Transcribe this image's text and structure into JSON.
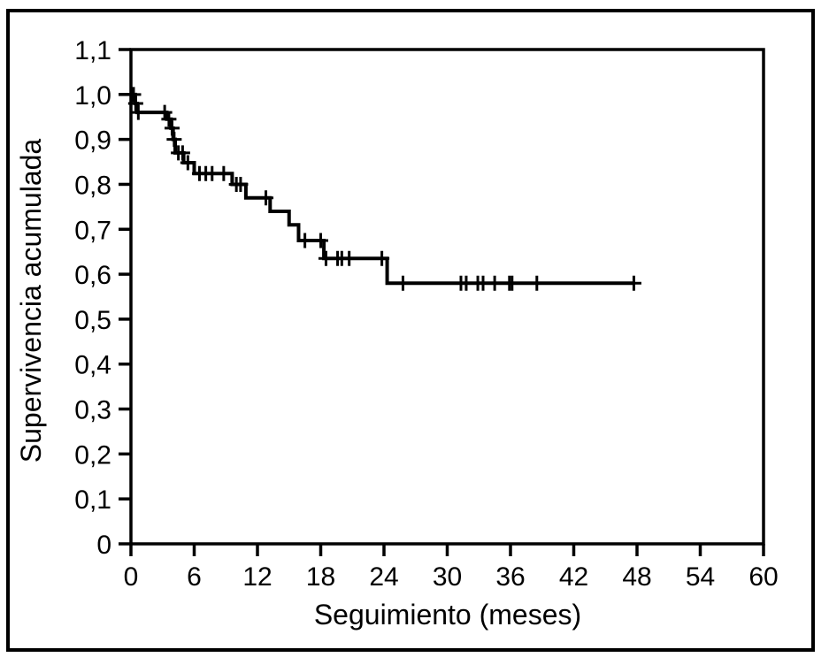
{
  "figure": {
    "background_color": "#ffffff",
    "border_color": "#000000",
    "line_color": "#000000"
  },
  "chart_data": {
    "type": "line",
    "subtype": "kaplan-meier-step-function",
    "title": "",
    "xlabel": "Seguimiento (meses)",
    "ylabel": "Supervivencia acumulada",
    "xlim": [
      0,
      60
    ],
    "ylim": [
      0,
      1.1
    ],
    "grid": false,
    "legend": false,
    "decimal_separator": ",",
    "xticks": [
      0,
      6,
      12,
      18,
      24,
      30,
      36,
      42,
      48,
      54,
      60
    ],
    "xtick_labels": [
      "0",
      "6",
      "12",
      "18",
      "24",
      "30",
      "36",
      "42",
      "48",
      "54",
      "60"
    ],
    "yticks": [
      0,
      0.1,
      0.2,
      0.3,
      0.4,
      0.5,
      0.6,
      0.7,
      0.8,
      0.9,
      1.0,
      1.1
    ],
    "ytick_labels": [
      "0",
      "0,1",
      "0,2",
      "0,3",
      "0,4",
      "0,5",
      "0,6",
      "0,7",
      "0,8",
      "0,9",
      "1,0",
      "1,1"
    ],
    "series": [
      {
        "name": "Supervivencia acumulada",
        "color": "#000000",
        "steps": [
          [
            0,
            1.0
          ],
          [
            0.4,
            0.98
          ],
          [
            0.6,
            0.96
          ],
          [
            3.4,
            0.945
          ],
          [
            3.8,
            0.925
          ],
          [
            4.0,
            0.9
          ],
          [
            4.2,
            0.87
          ],
          [
            5.0,
            0.848
          ],
          [
            6.0,
            0.824
          ],
          [
            9.6,
            0.8
          ],
          [
            10.9,
            0.77
          ],
          [
            13.2,
            0.74
          ],
          [
            15.0,
            0.71
          ],
          [
            15.9,
            0.675
          ],
          [
            18.3,
            0.635
          ],
          [
            24.3,
            0.58
          ]
        ],
        "end_time": 47.8,
        "censored": [
          [
            0.25,
            1.0
          ],
          [
            0.45,
            0.98
          ],
          [
            0.7,
            0.96
          ],
          [
            3.2,
            0.96
          ],
          [
            3.6,
            0.945
          ],
          [
            3.9,
            0.925
          ],
          [
            4.1,
            0.9
          ],
          [
            4.5,
            0.87
          ],
          [
            4.9,
            0.87
          ],
          [
            5.4,
            0.848
          ],
          [
            6.5,
            0.824
          ],
          [
            7.1,
            0.824
          ],
          [
            7.7,
            0.824
          ],
          [
            8.8,
            0.824
          ],
          [
            10.0,
            0.8
          ],
          [
            10.4,
            0.8
          ],
          [
            12.8,
            0.77
          ],
          [
            16.5,
            0.675
          ],
          [
            18.0,
            0.675
          ],
          [
            18.5,
            0.635
          ],
          [
            19.6,
            0.635
          ],
          [
            20.0,
            0.635
          ],
          [
            20.7,
            0.635
          ],
          [
            23.8,
            0.635
          ],
          [
            25.8,
            0.58
          ],
          [
            31.3,
            0.58
          ],
          [
            31.8,
            0.58
          ],
          [
            32.9,
            0.58
          ],
          [
            33.4,
            0.58
          ],
          [
            34.5,
            0.58
          ],
          [
            35.9,
            0.58
          ],
          [
            36.15,
            0.58
          ],
          [
            38.5,
            0.58
          ],
          [
            47.7,
            0.58
          ]
        ]
      }
    ]
  }
}
